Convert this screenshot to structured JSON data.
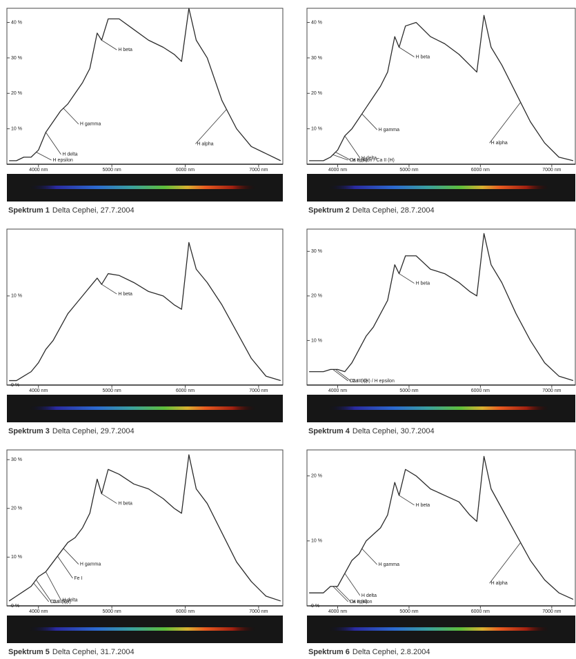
{
  "chart_data": [
    {
      "type": "line",
      "label": "Spektrum 1",
      "title": "Delta Cephei, 27.7.2004",
      "color": "#2a2a2a",
      "x": [
        3600,
        3700,
        3800,
        3900,
        4000,
        4100,
        4200,
        4300,
        4400,
        4500,
        4600,
        4700,
        4800,
        4861,
        4950,
        5100,
        5300,
        5500,
        5700,
        5850,
        5950,
        6050,
        6150,
        6300,
        6500,
        6700,
        6900,
        7100,
        7300
      ],
      "values": [
        1,
        1,
        2,
        2,
        4,
        9,
        12,
        15,
        17,
        20,
        23,
        27,
        37,
        35,
        41,
        41,
        38,
        35,
        33,
        31,
        29,
        44,
        35,
        30,
        18,
        10,
        5,
        3,
        1
      ],
      "xlim": [
        3570,
        7330
      ],
      "ylim": [
        0,
        44
      ],
      "xticks": [
        {
          "value": 4000,
          "label": "4000 nm"
        },
        {
          "value": 5000,
          "label": "5000 nm"
        },
        {
          "value": 6000,
          "label": "6000 nm"
        },
        {
          "value": 7000,
          "label": "7000 nm"
        }
      ],
      "yticks": [
        {
          "value": 10,
          "label": "10 %"
        },
        {
          "value": 20,
          "label": "20 %"
        },
        {
          "value": 30,
          "label": "30 %"
        },
        {
          "value": 40,
          "label": "40 %"
        }
      ],
      "annotations": [
        {
          "text": "H beta",
          "x": 4861
        },
        {
          "text": "H gamma",
          "x": 4340
        },
        {
          "text": "H delta",
          "x": 4100
        },
        {
          "text": "H epsilon",
          "x": 3970
        },
        {
          "text": "H alpha",
          "x": 6563
        }
      ]
    },
    {
      "type": "line",
      "label": "Spektrum 2",
      "title": "Delta Cephei, 28.7.2004",
      "color": "#2a2a2a",
      "x": [
        3600,
        3700,
        3800,
        3900,
        4000,
        4100,
        4200,
        4300,
        4400,
        4500,
        4600,
        4700,
        4800,
        4861,
        4950,
        5100,
        5300,
        5500,
        5700,
        5850,
        5950,
        6050,
        6150,
        6300,
        6500,
        6700,
        6900,
        7100,
        7300
      ],
      "values": [
        1,
        1,
        1,
        2,
        4,
        8,
        10,
        13,
        16,
        19,
        22,
        26,
        36,
        33,
        39,
        40,
        36,
        34,
        31,
        28,
        26,
        42,
        33,
        28,
        20,
        12,
        6,
        2,
        1
      ],
      "xlim": [
        3570,
        7330
      ],
      "ylim": [
        0,
        44
      ],
      "xticks": [
        {
          "value": 4000,
          "label": "4000 nm"
        },
        {
          "value": 5000,
          "label": "5000 nm"
        },
        {
          "value": 6000,
          "label": "6000 nm"
        },
        {
          "value": 7000,
          "label": "7000 nm"
        }
      ],
      "yticks": [
        {
          "value": 10,
          "label": "10 %"
        },
        {
          "value": 20,
          "label": "20 %"
        },
        {
          "value": 30,
          "label": "30 %"
        },
        {
          "value": 40,
          "label": "40 %"
        }
      ],
      "annotations": [
        {
          "text": "H beta",
          "x": 4861
        },
        {
          "text": "H gamma",
          "x": 4340
        },
        {
          "text": "H delta",
          "x": 4100
        },
        {
          "text": "H epsilon / Ca II (H)",
          "x": 3970
        },
        {
          "text": "Ca II (K)",
          "x": 3934
        },
        {
          "text": "H alpha",
          "x": 6563
        }
      ]
    },
    {
      "type": "line",
      "label": "Spektrum 3",
      "title": "Delta Cephei, 29.7.2004",
      "color": "#2a2a2a",
      "x": [
        3600,
        3700,
        3800,
        3900,
        4000,
        4100,
        4200,
        4300,
        4400,
        4500,
        4600,
        4700,
        4800,
        4861,
        4950,
        5100,
        5300,
        5500,
        5700,
        5850,
        5950,
        6050,
        6150,
        6300,
        6500,
        6700,
        6900,
        7100,
        7300
      ],
      "values": [
        0.5,
        0.5,
        1,
        1.5,
        2.5,
        4,
        5,
        6.5,
        8,
        9,
        10,
        11,
        12,
        11.3,
        12.5,
        12.3,
        11.5,
        10.5,
        10,
        9,
        8.5,
        16,
        13,
        11.5,
        9,
        6,
        3,
        1,
        0.5
      ],
      "xlim": [
        3570,
        7330
      ],
      "ylim": [
        0,
        17.5
      ],
      "xticks": [
        {
          "value": 4000,
          "label": "4000 nm"
        },
        {
          "value": 5000,
          "label": "5000 nm"
        },
        {
          "value": 6000,
          "label": "6000 nm"
        },
        {
          "value": 7000,
          "label": "7000 nm"
        }
      ],
      "yticks": [
        {
          "value": 0,
          "label": "0 %"
        },
        {
          "value": 10,
          "label": "10 %"
        }
      ],
      "annotations": [
        {
          "text": "H beta",
          "x": 4861
        }
      ]
    },
    {
      "type": "line",
      "label": "Spektrum 4",
      "title": "Delta Cephei, 30.7.2004",
      "color": "#2a2a2a",
      "x": [
        3600,
        3700,
        3800,
        3900,
        4000,
        4100,
        4200,
        4300,
        4400,
        4500,
        4600,
        4700,
        4800,
        4861,
        4950,
        5100,
        5300,
        5500,
        5700,
        5850,
        5950,
        6050,
        6150,
        6300,
        6500,
        6700,
        6900,
        7100,
        7300
      ],
      "values": [
        3,
        3,
        3,
        3.5,
        3.5,
        3,
        5,
        8,
        11,
        13,
        16,
        19,
        27,
        25,
        29,
        29,
        26,
        25,
        23,
        21,
        20,
        34,
        27,
        23,
        16,
        10,
        5,
        2,
        1
      ],
      "xlim": [
        3570,
        7330
      ],
      "ylim": [
        0,
        35
      ],
      "xticks": [
        {
          "value": 4000,
          "label": "4000 nm"
        },
        {
          "value": 5000,
          "label": "5000 nm"
        },
        {
          "value": 6000,
          "label": "6000 nm"
        },
        {
          "value": 7000,
          "label": "7000 nm"
        }
      ],
      "yticks": [
        {
          "value": 10,
          "label": "10 %"
        },
        {
          "value": 20,
          "label": "20 %"
        },
        {
          "value": 30,
          "label": "30 %"
        }
      ],
      "annotations": [
        {
          "text": "H beta",
          "x": 4861
        },
        {
          "text": "Ca II (H) / H epsilon",
          "x": 3970
        },
        {
          "text": "Ca II (K)",
          "x": 3934
        }
      ]
    },
    {
      "type": "line",
      "label": "Spektrum 5",
      "title": "Delta Cephei, 31.7.2004",
      "color": "#2a2a2a",
      "x": [
        3600,
        3700,
        3800,
        3900,
        4000,
        4100,
        4200,
        4300,
        4400,
        4500,
        4600,
        4700,
        4800,
        4861,
        4950,
        5100,
        5300,
        5500,
        5700,
        5850,
        5950,
        6050,
        6150,
        6300,
        6500,
        6700,
        6900,
        7100,
        7300
      ],
      "values": [
        1,
        2,
        3,
        4,
        6,
        7,
        9,
        11,
        13,
        14,
        16,
        19,
        26,
        23,
        28,
        27,
        25,
        24,
        22,
        20,
        19,
        31,
        24,
        21,
        15,
        9,
        5,
        2,
        1
      ],
      "xlim": [
        3570,
        7330
      ],
      "ylim": [
        0,
        32
      ],
      "xticks": [
        {
          "value": 4000,
          "label": "4000 nm"
        },
        {
          "value": 5000,
          "label": "5000 nm"
        },
        {
          "value": 6000,
          "label": "6000 nm"
        },
        {
          "value": 7000,
          "label": "7000 nm"
        }
      ],
      "yticks": [
        {
          "value": 0,
          "label": "0 %"
        },
        {
          "value": 10,
          "label": "10 %"
        },
        {
          "value": 20,
          "label": "20 %"
        },
        {
          "value": 30,
          "label": "30 %"
        }
      ],
      "annotations": [
        {
          "text": "H beta",
          "x": 4861
        },
        {
          "text": "H gamma",
          "x": 4340
        },
        {
          "text": "Fe I",
          "x": 4260
        },
        {
          "text": "H delta",
          "x": 4100
        },
        {
          "text": "Ca II (H)",
          "x": 3968
        },
        {
          "text": "Ca II (K)",
          "x": 3934
        }
      ]
    },
    {
      "type": "line",
      "label": "Spektrum 6",
      "title": "Delta Cephei, 2.8.2004",
      "color": "#2a2a2a",
      "x": [
        3600,
        3700,
        3800,
        3900,
        4000,
        4100,
        4200,
        4300,
        4400,
        4500,
        4600,
        4700,
        4800,
        4861,
        4950,
        5100,
        5300,
        5500,
        5700,
        5850,
        5950,
        6050,
        6150,
        6300,
        6500,
        6700,
        6900,
        7100,
        7300
      ],
      "values": [
        2,
        2,
        2,
        3,
        3,
        5,
        7,
        8,
        10,
        11,
        12,
        14,
        19,
        17,
        21,
        20,
        18,
        17,
        16,
        14,
        13,
        23,
        18,
        15,
        11,
        7,
        4,
        2,
        1
      ],
      "xlim": [
        3570,
        7330
      ],
      "ylim": [
        0,
        24
      ],
      "xticks": [
        {
          "value": 4000,
          "label": "4000 nm"
        },
        {
          "value": 5000,
          "label": "5000 nm"
        },
        {
          "value": 6000,
          "label": "6000 nm"
        },
        {
          "value": 7000,
          "label": "7000 nm"
        }
      ],
      "yticks": [
        {
          "value": 0,
          "label": "0 %"
        },
        {
          "value": 10,
          "label": "10 %"
        },
        {
          "value": 20,
          "label": "20 %"
        }
      ],
      "annotations": [
        {
          "text": "H beta",
          "x": 4861
        },
        {
          "text": "H gamma",
          "x": 4340
        },
        {
          "text": "H delta",
          "x": 4100
        },
        {
          "text": "H epsilon",
          "x": 3970
        },
        {
          "text": "Ca II (K)",
          "x": 3934
        },
        {
          "text": "H alpha",
          "x": 6563
        }
      ]
    }
  ]
}
